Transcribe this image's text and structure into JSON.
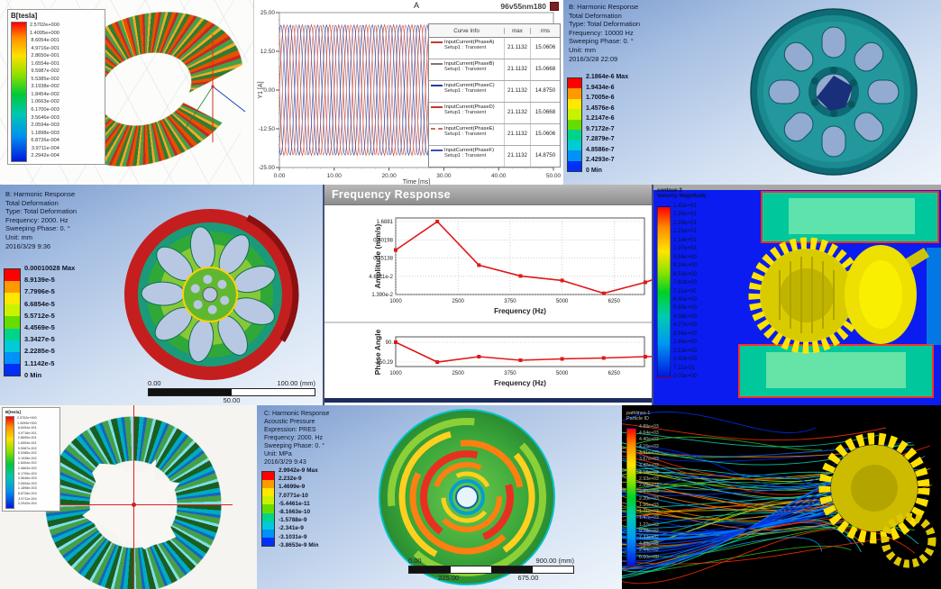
{
  "chart_data": [
    {
      "type": "line",
      "title": "A",
      "xlabel": "Time [ms]",
      "ylabel": "Y1 [A]",
      "xlim": [
        0,
        50
      ],
      "ylim": [
        -25,
        25
      ],
      "xticks": [
        "0.00",
        "10.00",
        "20.00",
        "30.00",
        "40.00",
        "50.00"
      ],
      "yticks": [
        "25.00",
        "12.50",
        "0.00",
        "-12.50",
        "-25.00"
      ],
      "amplitude": 21.1132,
      "frequency_cycles_per_ms": 0.3,
      "series": [
        {
          "name": "InputCurrent(PhaseA)",
          "color": "#c23b2e",
          "phase_deg": 0
        },
        {
          "name": "InputCurrent(PhaseB)",
          "color": "#8a6d7d",
          "phase_deg": -60
        },
        {
          "name": "InputCurrent(PhaseC)",
          "color": "#2c3c9c",
          "phase_deg": -120
        },
        {
          "name": "InputCurrent(PhaseD)",
          "color": "#c23b2e",
          "phase_deg": -180
        },
        {
          "name": "InputCurrent(PhaseE)",
          "color": "#d06a5e",
          "phase_deg": -240
        },
        {
          "name": "InputCurrent(PhaseF)",
          "color": "#3c50b4",
          "phase_deg": -300
        }
      ],
      "legend_table": {
        "headers": [
          "Curve Info",
          "max",
          "rms"
        ],
        "rows": [
          {
            "curve": "InputCurrent(PhaseA)",
            "setup": "Setup1 : Transient",
            "max": "21.1132",
            "rms": "15.0606",
            "color": "#c23b2e",
            "line": "solid"
          },
          {
            "curve": "InputCurrent(PhaseB)",
            "setup": "Setup1 : Transient",
            "max": "21.1132",
            "rms": "15.0668",
            "color": "#8a6d7d",
            "line": "solid"
          },
          {
            "curve": "InputCurrent(PhaseC)",
            "setup": "Setup1 : Transient",
            "max": "21.1132",
            "rms": "14.8750",
            "color": "#2c3c9c",
            "line": "solid"
          },
          {
            "curve": "InputCurrent(PhaseD)",
            "setup": "Setup1 : Transient",
            "max": "21.1132",
            "rms": "15.0668",
            "color": "#c23b2e",
            "line": "solid"
          },
          {
            "curve": "InputCurrent(PhaseE)",
            "setup": "Setup1 : Transient",
            "max": "21.1132",
            "rms": "15.0606",
            "color": "#d06a5e",
            "line": "dashed"
          },
          {
            "curve": "InputCurrent(PhaseF)",
            "setup": "Setup1 : Transient",
            "max": "21.1132",
            "rms": "14.8750",
            "color": "#3c50b4",
            "line": "solid"
          }
        ]
      }
    },
    {
      "type": "line",
      "title": "Frequency Response",
      "ylabel": "Amplitude (mm/s)",
      "xlabel": "Frequency (Hz)",
      "yscale": "log",
      "x": [
        1000,
        2000,
        3000,
        4000,
        5000,
        6000,
        7000,
        7500
      ],
      "y": [
        0.26,
        1.6881,
        0.096,
        0.047,
        0.035,
        0.015,
        0.031,
        0.05
      ],
      "yticks": [
        "1.6881",
        "0.50198",
        "0.15138",
        "4.6011e-2",
        "1.390e-2"
      ],
      "xticks": [
        "1000",
        "2500",
        "3750",
        "5000",
        "6250",
        "7500"
      ],
      "color": "#e01818"
    },
    {
      "type": "line",
      "ylabel": "Phase Angle",
      "xlabel": "Frequency (Hz)",
      "x": [
        1000,
        2000,
        3000,
        4000,
        5000,
        6000,
        7000,
        7500
      ],
      "y": [
        90,
        -150.29,
        -85,
        -128,
        -112,
        -101,
        -85,
        -80
      ],
      "yticks": [
        "90.",
        "-150.29"
      ],
      "xticks": [
        "1000",
        "2500",
        "3750",
        "5000",
        "6250",
        "7500"
      ],
      "color": "#e01818"
    }
  ],
  "panels": {
    "flux_torus": {
      "legend_title": "B[tesla]",
      "legend_values": [
        "2.5702e+000",
        "1.4095e+000",
        "8.6054e-001",
        "4.9716e-001",
        "2.8650e-001",
        "1.6554e-001",
        "9.5987e-002",
        "5.5385e-002",
        "3.1938e-002",
        "1.8454e-002",
        "1.0663e-002",
        "6.1700e-003",
        "3.5646e-003",
        "2.0594e-003",
        "1.1898e-003",
        "6.8726e-004",
        "3.9711e-004",
        "2.2942e-004"
      ]
    },
    "currents_window": {
      "corner_label": "96v55nm180"
    },
    "harmonic_10000": {
      "header": [
        "B: Harmonic Response",
        "Total Deformation",
        "Type: Total Deformation",
        "Frequency: 10000 Hz",
        "Sweeping Phase: 0. °",
        "Unit: mm",
        "2016/3/28 22:09"
      ],
      "band_colors": [
        "#fe0000",
        "#fe9900",
        "#ffe800",
        "#c9f200",
        "#66dc00",
        "#00d48c",
        "#00cbd6",
        "#0092f8",
        "#0030f8"
      ],
      "labels": [
        "2.1864e-6 Max",
        "1.9434e-6",
        "1.7005e-6",
        "1.4576e-6",
        "1.2147e-6",
        "9.7172e-7",
        "7.2879e-7",
        "4.8586e-7",
        "2.4293e-7",
        "0 Min"
      ]
    },
    "harmonic_2000": {
      "header": [
        "B: Harmonic Response",
        "Total Deformation",
        "Type: Total Deformation",
        "Frequency: 2000. Hz",
        "Sweeping Phase: 0. °",
        "Unit: mm",
        "2016/3/29 9:36"
      ],
      "band_colors": [
        "#fe0000",
        "#fe9900",
        "#ffe800",
        "#c9f200",
        "#66dc00",
        "#00d48c",
        "#00cbd6",
        "#0092f8",
        "#0030f8"
      ],
      "labels": [
        "0.00010028 Max",
        "8.9139e-5",
        "7.7996e-5",
        "6.6854e-5",
        "5.5712e-5",
        "4.4569e-5",
        "3.3427e-5",
        "2.2285e-5",
        "1.1142e-5",
        "0 Min"
      ],
      "scale": {
        "left": "0.00",
        "right": "100.00 (mm)",
        "mid": "50.00"
      }
    },
    "freq_window": {
      "title": "Frequency Response"
    },
    "cfd_velocity": {
      "title_lines": [
        "contour-2",
        "Velocity Magnitude"
      ],
      "values": [
        "1.42e+01",
        "1.35e+01",
        "1.28e+01",
        "1.21e+01",
        "1.14e+01",
        "1.07e+01",
        "9.96e+00",
        "9.24e+00",
        "8.53e+00",
        "7.82e+00",
        "7.11e+00",
        "6.40e+00",
        "5.69e+00",
        "4.98e+00",
        "4.27e+00",
        "3.56e+00",
        "2.84e+00",
        "2.13e+00",
        "1.42e+00",
        "7.11e-01",
        "0.00e+00"
      ]
    },
    "rotor_field": {
      "legend_title": "B[tesla]",
      "legend_values": [
        "2.5702e+000",
        "1.4095e+000",
        "8.6054e-001",
        "4.9716e-001",
        "2.8650e-001",
        "1.6554e-001",
        "9.5987e-002",
        "5.5385e-002",
        "3.1938e-002",
        "1.8454e-002",
        "1.0663e-002",
        "6.1700e-003",
        "3.5646e-003",
        "2.0594e-003",
        "1.1898e-003",
        "6.8726e-004",
        "3.9711e-004",
        "2.2942e-004"
      ]
    },
    "acoustic": {
      "header": [
        "C: Harmonic Response",
        "Acoustic Pressure",
        "Expression: PRES",
        "Frequency: 2000. Hz",
        "Sweeping Phase: 0. °",
        "Unit: MPa",
        "2016/3/29 9:43"
      ],
      "band_colors": [
        "#fe0000",
        "#fe9900",
        "#ffe800",
        "#c9f200",
        "#66dc00",
        "#00d48c",
        "#00cbd6",
        "#0092f8",
        "#0030f8"
      ],
      "labels": [
        "2.9942e-9 Max",
        "2.232e-9",
        "1.4699e-9",
        "7.0771e-10",
        "-5.4461e-11",
        "-8.1663e-10",
        "-1.5788e-9",
        "-2.341e-9",
        "-3.1031e-9",
        "-3.8653e-9 Min"
      ],
      "scale": {
        "left": "0.00",
        "right": "900.00 (mm)",
        "q1": "225.00",
        "q3": "675.00"
      }
    },
    "pathlines": {
      "title_lines": [
        "pathlines-1",
        "Particle ID"
      ],
      "values": [
        "4.89e+03",
        "4.64e+03",
        "4.40e+03",
        "4.15e+03",
        "3.91e+03",
        "3.67e+03",
        "3.42e+03",
        "3.18e+03",
        "2.93e+03",
        "2.69e+03",
        "2.44e+03",
        "2.20e+03",
        "1.96e+03",
        "1.71e+03",
        "1.47e+03",
        "1.22e+03",
        "9.78e+02",
        "7.33e+02",
        "4.89e+02",
        "2.44e+02",
        "0.00e+00"
      ],
      "stream_colors": [
        "#0030ff",
        "#00a0ff",
        "#00e0c0",
        "#38c020",
        "#b0d800",
        "#ff8000",
        "#ff3000"
      ]
    }
  }
}
